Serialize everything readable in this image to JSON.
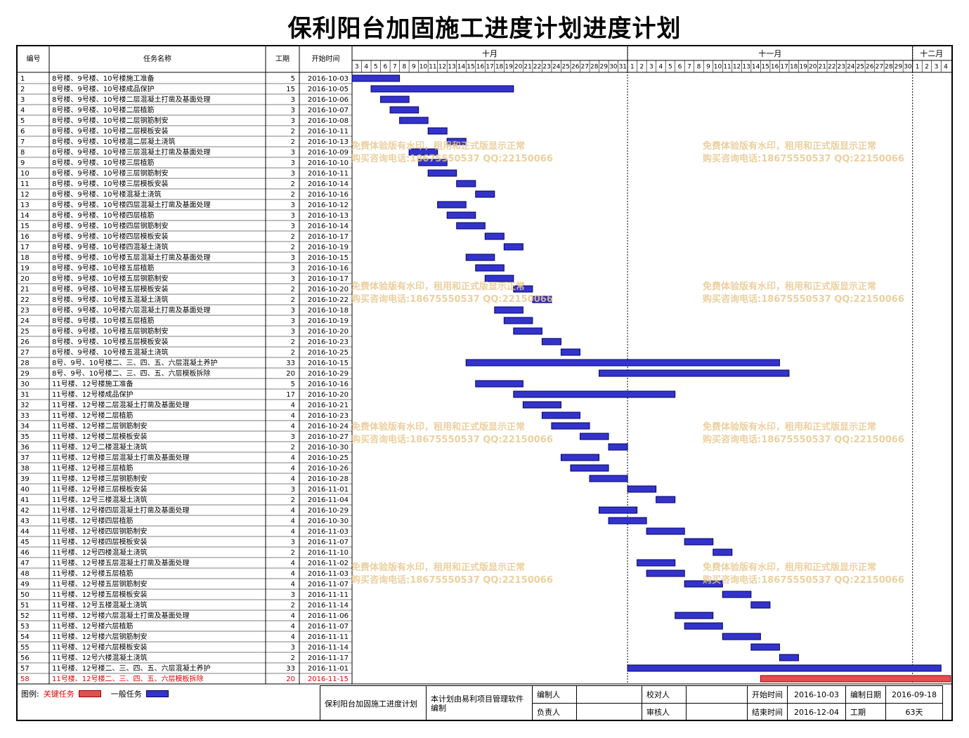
{
  "title": "保利阳台加固施工进度计划进度计划",
  "columns": {
    "id": "编号",
    "name": "任务名称",
    "dur": "工期",
    "start": "开始时间"
  },
  "months": [
    {
      "label": "十月",
      "firstDay": 3,
      "lastDay": 31
    },
    {
      "label": "十一月",
      "firstDay": 1,
      "lastDay": 30
    },
    {
      "label": "十二月",
      "firstDay": 1,
      "lastDay": 4
    }
  ],
  "timeline": {
    "start": "2016-10-03",
    "end": "2016-12-04"
  },
  "colors": {
    "normal_fill": "#3333cc",
    "normal_edge": "#000066",
    "critical_fill": "#e05050",
    "critical_edge": "#990000",
    "critical_text": "#e00000",
    "watermark": "#e8c88f"
  },
  "chart_data": {
    "type": "gantt",
    "tasks": [
      {
        "id": "1",
        "name": "8号楼、9号楼、10号楼施工准备",
        "duration": 5,
        "start": "2016-10-03",
        "critical": false
      },
      {
        "id": "2",
        "name": "8号楼、9号楼、10号楼成品保护",
        "duration": 15,
        "start": "2016-10-05",
        "critical": false
      },
      {
        "id": "3",
        "name": "8号楼、9号楼、10号楼二层混凝土打凿及基面处理",
        "duration": 3,
        "start": "2016-10-06",
        "critical": false
      },
      {
        "id": "4",
        "name": "8号楼、9号楼、10号楼二层植筋",
        "duration": 3,
        "start": "2016-10-07",
        "critical": false
      },
      {
        "id": "5",
        "name": "8号楼、9号楼、10号楼二层钢筋制安",
        "duration": 3,
        "start": "2016-10-08",
        "critical": false
      },
      {
        "id": "6",
        "name": "8号楼、9号楼、10号楼二层模板安装",
        "duration": 2,
        "start": "2016-10-11",
        "critical": false
      },
      {
        "id": "7",
        "name": "8号楼、9号楼、10号楼混二层凝土浇筑",
        "duration": 2,
        "start": "2016-10-13",
        "critical": false
      },
      {
        "id": "8",
        "name": "8号楼、9号楼、10号楼三层混凝土打凿及基面处理",
        "duration": 3,
        "start": "2016-10-09",
        "critical": false
      },
      {
        "id": "9",
        "name": "8号楼、9号楼、10号楼三层植筋",
        "duration": 3,
        "start": "2016-10-10",
        "critical": false
      },
      {
        "id": "10",
        "name": "8号楼、9号楼、10号楼三层钢筋制安",
        "duration": 3,
        "start": "2016-10-11",
        "critical": false
      },
      {
        "id": "11",
        "name": "8号楼、9号楼、10号楼三层模板安装",
        "duration": 2,
        "start": "2016-10-14",
        "critical": false
      },
      {
        "id": "12",
        "name": "8号楼、9号楼、10号楼混凝土浇筑",
        "duration": 2,
        "start": "2016-10-16",
        "critical": false
      },
      {
        "id": "13",
        "name": "8号楼、9号楼、10号楼四层混凝土打凿及基面处理",
        "duration": 3,
        "start": "2016-10-12",
        "critical": false
      },
      {
        "id": "14",
        "name": "8号楼、9号楼、10号楼四层植筋",
        "duration": 3,
        "start": "2016-10-13",
        "critical": false
      },
      {
        "id": "15",
        "name": "8号楼、9号楼、10号楼四层钢筋制安",
        "duration": 3,
        "start": "2016-10-14",
        "critical": false
      },
      {
        "id": "16",
        "name": "8号楼、9号楼、10号楼四层模板安装",
        "duration": 2,
        "start": "2016-10-17",
        "critical": false
      },
      {
        "id": "17",
        "name": "8号楼、9号楼、10号楼四混凝土浇筑",
        "duration": 2,
        "start": "2016-10-19",
        "critical": false
      },
      {
        "id": "18",
        "name": "8号楼、9号楼、10号楼五层混凝土打凿及基面处理",
        "duration": 3,
        "start": "2016-10-15",
        "critical": false
      },
      {
        "id": "19",
        "name": "8号楼、9号楼、10号楼五层植筋",
        "duration": 3,
        "start": "2016-10-16",
        "critical": false
      },
      {
        "id": "20",
        "name": "8号楼、9号楼、10号楼五层钢筋制安",
        "duration": 3,
        "start": "2016-10-17",
        "critical": false
      },
      {
        "id": "21",
        "name": "8号楼、9号楼、10号楼五层模板安装",
        "duration": 2,
        "start": "2016-10-20",
        "critical": false
      },
      {
        "id": "22",
        "name": "8号楼、9号楼、10号楼五混凝土浇筑",
        "duration": 2,
        "start": "2016-10-22",
        "critical": false
      },
      {
        "id": "23",
        "name": "8号楼、9号楼、10号楼六层混凝土打凿及基面处理",
        "duration": 3,
        "start": "2016-10-18",
        "critical": false
      },
      {
        "id": "24",
        "name": "8号楼、9号楼、10号楼五层植筋",
        "duration": 3,
        "start": "2016-10-19",
        "critical": false
      },
      {
        "id": "25",
        "name": "8号楼、9号楼、10号楼五层钢筋制安",
        "duration": 3,
        "start": "2016-10-20",
        "critical": false
      },
      {
        "id": "26",
        "name": "8号楼、9号楼、10号楼五层模板安装",
        "duration": 2,
        "start": "2016-10-23",
        "critical": false
      },
      {
        "id": "27",
        "name": "8号楼、9号楼、10号楼五混凝土浇筑",
        "duration": 2,
        "start": "2016-10-25",
        "critical": false
      },
      {
        "id": "28",
        "name": "8号、9号、10号楼二、三、四、五、六层混凝土养护",
        "duration": 33,
        "start": "2016-10-15",
        "critical": false
      },
      {
        "id": "29",
        "name": "8号、9号、10号楼二、三、四、五、六层模板拆除",
        "duration": 20,
        "start": "2016-10-29",
        "critical": false
      },
      {
        "id": "30",
        "name": "11号楼、12号楼施工准备",
        "duration": 5,
        "start": "2016-10-16",
        "critical": false
      },
      {
        "id": "31",
        "name": "11号楼、12号楼成品保护",
        "duration": 17,
        "start": "2016-10-20",
        "critical": false
      },
      {
        "id": "32",
        "name": "11号楼、12号楼二层混凝土打凿及基面处理",
        "duration": 4,
        "start": "2016-10-21",
        "critical": false
      },
      {
        "id": "33",
        "name": "11号楼、12号楼二层植筋",
        "duration": 4,
        "start": "2016-10-23",
        "critical": false
      },
      {
        "id": "34",
        "name": "11号楼、12号楼二层钢筋制安",
        "duration": 4,
        "start": "2016-10-24",
        "critical": false
      },
      {
        "id": "35",
        "name": "11号楼、12号楼二层模板安装",
        "duration": 3,
        "start": "2016-10-27",
        "critical": false
      },
      {
        "id": "36",
        "name": "11号楼、12号二楼混凝土浇筑",
        "duration": 2,
        "start": "2016-10-30",
        "critical": false
      },
      {
        "id": "37",
        "name": "11号楼、12号楼三层混凝土打凿及基面处理",
        "duration": 4,
        "start": "2016-10-25",
        "critical": false
      },
      {
        "id": "38",
        "name": "11号楼、12号楼三层植筋",
        "duration": 4,
        "start": "2016-10-26",
        "critical": false
      },
      {
        "id": "39",
        "name": "11号楼、12号楼三层钢筋制安",
        "duration": 4,
        "start": "2016-10-28",
        "critical": false
      },
      {
        "id": "40",
        "name": "11号楼、12号楼三层模板安装",
        "duration": 3,
        "start": "2016-11-01",
        "critical": false
      },
      {
        "id": "41",
        "name": "11号楼、12号三楼混凝土浇筑",
        "duration": 2,
        "start": "2016-11-04",
        "critical": false
      },
      {
        "id": "42",
        "name": "11号楼、12号楼四层混凝土打凿及基面处理",
        "duration": 4,
        "start": "2016-10-29",
        "critical": false
      },
      {
        "id": "43",
        "name": "11号楼、12号楼四层植筋",
        "duration": 4,
        "start": "2016-10-30",
        "critical": false
      },
      {
        "id": "44",
        "name": "11号楼、12号楼四层钢筋制安",
        "duration": 4,
        "start": "2016-11-03",
        "critical": false
      },
      {
        "id": "45",
        "name": "11号楼、12号楼四层模板安装",
        "duration": 3,
        "start": "2016-11-07",
        "critical": false
      },
      {
        "id": "46",
        "name": "11号楼、12号四楼混凝土浇筑",
        "duration": 2,
        "start": "2016-11-10",
        "critical": false
      },
      {
        "id": "47",
        "name": "11号楼、12号楼五层混凝土打凿及基面处理",
        "duration": 4,
        "start": "2016-11-02",
        "critical": false
      },
      {
        "id": "48",
        "name": "11号楼、12号楼五层植筋",
        "duration": 4,
        "start": "2016-11-03",
        "critical": false
      },
      {
        "id": "49",
        "name": "11号楼、12号楼五层钢筋制安",
        "duration": 4,
        "start": "2016-11-07",
        "critical": false
      },
      {
        "id": "50",
        "name": "11号楼、12号楼五层模板安装",
        "duration": 3,
        "start": "2016-11-11",
        "critical": false
      },
      {
        "id": "51",
        "name": "11号楼、12号五楼混凝土浇筑",
        "duration": 2,
        "start": "2016-11-14",
        "critical": false
      },
      {
        "id": "52",
        "name": "11号楼、12号楼六层混凝土打凿及基面处理",
        "duration": 4,
        "start": "2016-11-06",
        "critical": false
      },
      {
        "id": "53",
        "name": "11号楼、12号楼六层植筋",
        "duration": 4,
        "start": "2016-11-07",
        "critical": false
      },
      {
        "id": "54",
        "name": "11号楼、12号楼六层钢筋制安",
        "duration": 4,
        "start": "2016-11-11",
        "critical": false
      },
      {
        "id": "55",
        "name": "11号楼、12号楼六层模板安装",
        "duration": 3,
        "start": "2016-11-14",
        "critical": false
      },
      {
        "id": "56",
        "name": "11号楼、12号六楼混凝土浇筑",
        "duration": 2,
        "start": "2016-11-17",
        "critical": false
      },
      {
        "id": "57",
        "name": "11号楼、12号楼二、三、四、五、六层混凝土养护",
        "duration": 33,
        "start": "2016-11-01",
        "critical": false
      },
      {
        "id": "58",
        "name": "11号楼、12号楼二、三、四、五、六层模板拆除",
        "duration": 20,
        "start": "2016-11-15",
        "critical": true
      }
    ]
  },
  "legend": {
    "label": "图例:",
    "critical": "关键任务",
    "normal": "一般任务"
  },
  "footer": {
    "plan_name": "保利阳台加固施工进度计划",
    "software_note": "本计划由易利项目管理软件编制",
    "compiler": "编制人",
    "checker": "校对人",
    "start_label": "开始时间",
    "start_value": "2016-10-03",
    "compile_date_label": "编制日期",
    "compile_date_value": "2016-09-18",
    "manager": "负责人",
    "reviewer": "审核人",
    "end_label": "结束时间",
    "end_value": "2016-12-04",
    "duration_label": "工期",
    "duration_value": "63天"
  },
  "watermark": {
    "line1": "免费体验版有水印，租用和正式版显示正常",
    "line2": "购买咨询电话:18675550537 QQ:22150066"
  }
}
